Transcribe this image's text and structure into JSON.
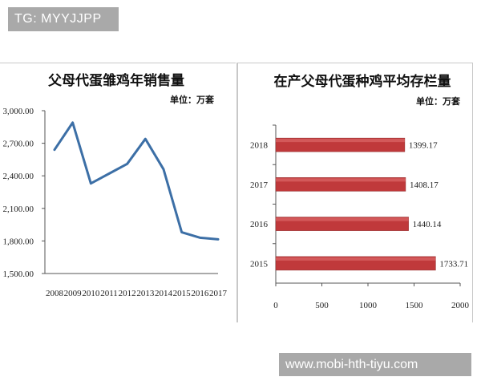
{
  "watermarks": {
    "top": "TG: MYYJJPP",
    "bottom": "www.mobi-hth-tiyu.com"
  },
  "chart_data": [
    {
      "type": "line",
      "title": "父母代蛋雏鸡年销售量",
      "unit": "单位：万套",
      "x": [
        "2008",
        "2009",
        "2010",
        "2011",
        "2012",
        "2013",
        "2014",
        "2015",
        "2016",
        "2017"
      ],
      "series": [
        {
          "values": [
            2640,
            2890,
            2330,
            2420,
            2510,
            2740,
            2460,
            1880,
            1830,
            1815
          ]
        }
      ],
      "ylim": [
        1500,
        3000
      ],
      "yticks": [
        "1,500.00",
        "1,800.00",
        "2,100.00",
        "2,400.00",
        "2,700.00",
        "3,000.00"
      ],
      "grid": false,
      "color": "#3c6fa6"
    },
    {
      "type": "bar",
      "orientation": "horizontal",
      "title": "在产父母代蛋种鸡平均存栏量",
      "unit": "单位：万套",
      "categories": [
        "2018",
        "2017",
        "2016",
        "2015"
      ],
      "values": [
        1399.17,
        1408.17,
        1440.14,
        1733.71
      ],
      "labels": [
        "1399.17",
        "1408.17",
        "1440.14",
        "1733.71"
      ],
      "xlim": [
        0,
        2000
      ],
      "xticks": [
        "0",
        "500",
        "1000",
        "1500",
        "2000"
      ],
      "grid": false,
      "color": "#c0393b"
    }
  ]
}
